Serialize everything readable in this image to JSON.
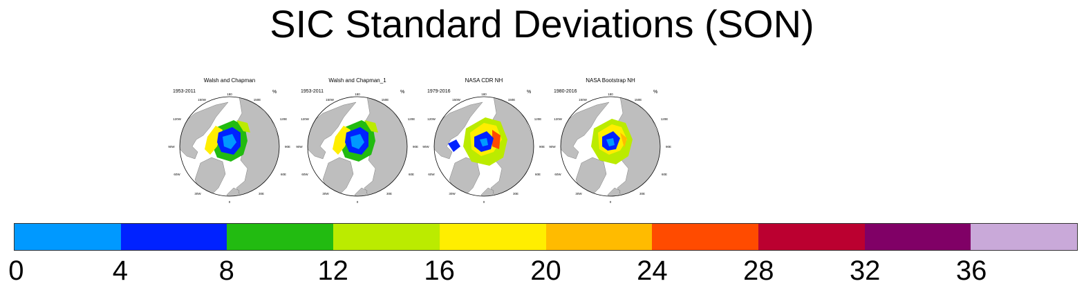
{
  "title": "SIC Standard Deviations (SON)",
  "panels": [
    {
      "title": "Walsh and Chapman",
      "years": "1953-2011",
      "unit": "%",
      "variant": "wc"
    },
    {
      "title": "Walsh and Chapman_1",
      "years": "1953-2011",
      "unit": "%",
      "variant": "wc"
    },
    {
      "title": "NASA CDR NH",
      "years": "1979-2016",
      "unit": "%",
      "variant": "cdr"
    },
    {
      "title": "NASA Bootstrap NH",
      "years": "1980-2016",
      "unit": "%",
      "variant": "bs"
    }
  ],
  "longitude_labels": {
    "top": "180",
    "top_left": "150W",
    "top_right": "150E",
    "upper_left": "120W",
    "upper_right": "120E",
    "left": "90W",
    "right": "90E",
    "lower_left": "60W",
    "lower_right": "60E",
    "bottom_left": "30W",
    "bottom_right": "30E",
    "bottom": "0"
  },
  "colorbar": {
    "colors": [
      "#0099ff",
      "#0022ff",
      "#22bb11",
      "#bbeb00",
      "#ffee00",
      "#ffbb00",
      "#ff4b00",
      "#bb0030",
      "#800066",
      "#c9a9d9"
    ],
    "labels": [
      "0",
      "4",
      "8",
      "12",
      "16",
      "20",
      "24",
      "28",
      "32",
      "36"
    ]
  },
  "colors": {
    "land": "#bebebe",
    "ocean": "#ffffff"
  }
}
